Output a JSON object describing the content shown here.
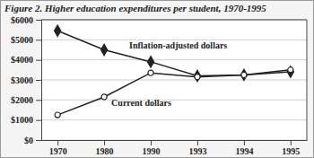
{
  "chart_data": {
    "type": "line",
    "title": "Figure 2. Higher education expenditures per student, 1970-1995",
    "categories": [
      "1970",
      "1980",
      "1990",
      "1993",
      "1994",
      "1995"
    ],
    "series": [
      {
        "name": "Inflation-adjusted dollars",
        "color": "#222222",
        "marker": "diamond",
        "line_style": "solid",
        "values": [
          5450,
          4500,
          3900,
          3200,
          3250,
          3400
        ]
      },
      {
        "name": "Current dollars",
        "color": "#222222",
        "marker": "circle",
        "line_style": "solid",
        "values": [
          1250,
          2150,
          3350,
          3150,
          3250,
          3500
        ]
      }
    ],
    "ylim": [
      0,
      6000
    ],
    "yticks": [
      {
        "value": 0,
        "label": "$0"
      },
      {
        "value": 1000,
        "label": "$1000"
      },
      {
        "value": 2000,
        "label": "$2000"
      },
      {
        "value": 3000,
        "label": "$3000"
      },
      {
        "value": 4000,
        "label": "$4000"
      },
      {
        "value": 5000,
        "label": "$5000"
      },
      {
        "value": 6000,
        "label": "$6000"
      }
    ],
    "grid": true
  }
}
